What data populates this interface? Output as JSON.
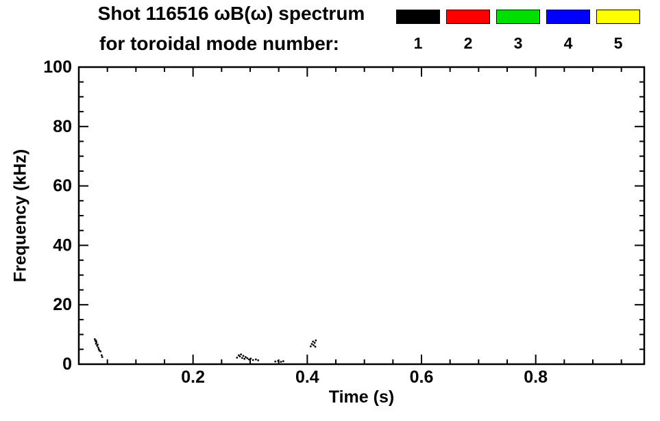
{
  "title": {
    "line1": "Shot 116516 ωB(ω) spectrum",
    "line2": "for toroidal mode number:"
  },
  "legend": {
    "items": [
      {
        "label": "1",
        "color": "#000000"
      },
      {
        "label": "2",
        "color": "#ff0000"
      },
      {
        "label": "3",
        "color": "#00e000"
      },
      {
        "label": "4",
        "color": "#0000ff"
      },
      {
        "label": "5",
        "color": "#ffff00"
      }
    ]
  },
  "chart_data": {
    "type": "scatter",
    "title": "Shot 116516 ωB(ω) spectrum for toroidal mode number:",
    "xlabel": "Time (s)",
    "ylabel": "Frequency (kHz)",
    "xlim": [
      0.0,
      0.99
    ],
    "ylim": [
      0,
      100
    ],
    "x_major_ticks": [
      0.2,
      0.4,
      0.6,
      0.8
    ],
    "x_minor_step": 0.05,
    "y_major_ticks": [
      0,
      20,
      40,
      60,
      80,
      100
    ],
    "y_minor_step": 5,
    "grid": false,
    "legend_position": "top-right",
    "legend_entries": [
      "1",
      "2",
      "3",
      "4",
      "5"
    ],
    "series": [
      {
        "name": "1",
        "color": "#000000",
        "points": [
          [
            0.028,
            8.4
          ],
          [
            0.029,
            7.8
          ],
          [
            0.03,
            8.0
          ],
          [
            0.03,
            6.9
          ],
          [
            0.031,
            7.4
          ],
          [
            0.032,
            6.2
          ],
          [
            0.033,
            6.6
          ],
          [
            0.034,
            5.6
          ],
          [
            0.035,
            5.0
          ],
          [
            0.036,
            4.6
          ],
          [
            0.038,
            4.3
          ],
          [
            0.04,
            3.0
          ],
          [
            0.041,
            2.4
          ],
          [
            0.277,
            2.2
          ],
          [
            0.28,
            3.0
          ],
          [
            0.282,
            2.6
          ],
          [
            0.284,
            3.3
          ],
          [
            0.286,
            2.1
          ],
          [
            0.288,
            2.8
          ],
          [
            0.29,
            1.8
          ],
          [
            0.292,
            2.4
          ],
          [
            0.295,
            2.0
          ],
          [
            0.298,
            1.6
          ],
          [
            0.301,
            1.9
          ],
          [
            0.305,
            1.4
          ],
          [
            0.31,
            1.6
          ],
          [
            0.314,
            1.3
          ],
          [
            0.344,
            0.9
          ],
          [
            0.349,
            1.1
          ],
          [
            0.354,
            0.8
          ],
          [
            0.358,
            1.0
          ],
          [
            0.406,
            6.0
          ],
          [
            0.408,
            6.8
          ],
          [
            0.41,
            7.6
          ],
          [
            0.411,
            6.4
          ],
          [
            0.413,
            7.2
          ],
          [
            0.414,
            5.9
          ],
          [
            0.415,
            8.0
          ]
        ]
      },
      {
        "name": "2",
        "color": "#ff0000",
        "points": []
      },
      {
        "name": "3",
        "color": "#00e000",
        "points": []
      },
      {
        "name": "4",
        "color": "#0000ff",
        "points": []
      },
      {
        "name": "5",
        "color": "#ffff00",
        "points": []
      }
    ]
  }
}
